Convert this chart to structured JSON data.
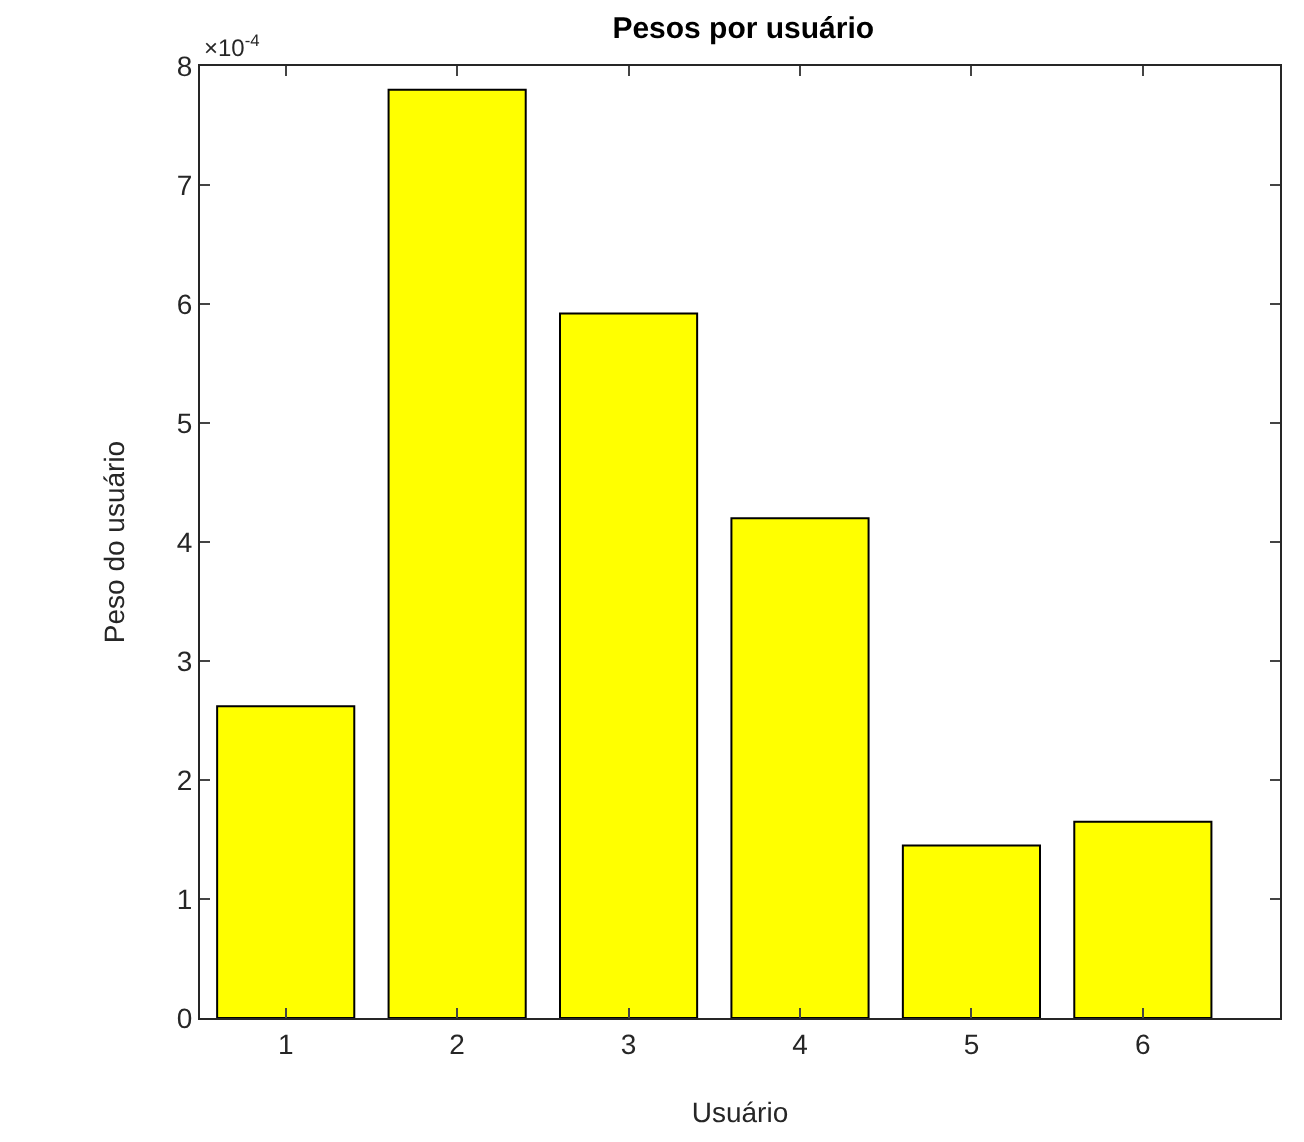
{
  "chart_data": {
    "type": "bar",
    "title": "Pesos por usuário",
    "xlabel": "Usuário",
    "ylabel": "Peso do usuário",
    "x": [
      1,
      2,
      3,
      4,
      5,
      6
    ],
    "values": [
      2.62,
      7.8,
      5.92,
      4.2,
      1.45,
      1.65
    ],
    "color": "#ffff00",
    "xlim": [
      0.5,
      6.8
    ],
    "xticks": [
      1,
      2,
      3,
      4,
      5,
      6
    ],
    "ylim": [
      0,
      8
    ],
    "yticks": [
      0,
      1,
      2,
      3,
      4,
      5,
      6,
      7,
      8
    ],
    "annotations": [
      "×10$^{-4}$"
    ],
    "grid": false,
    "legend": false
  }
}
